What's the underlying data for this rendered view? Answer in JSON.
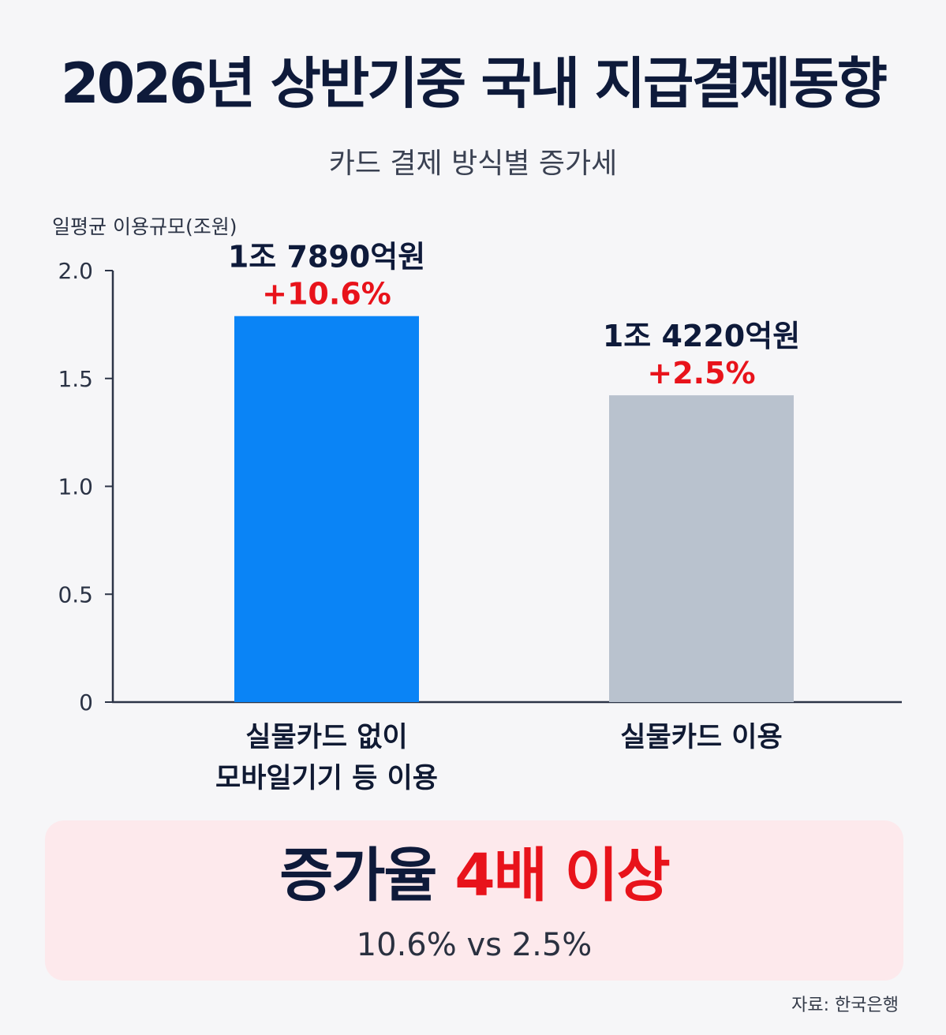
{
  "header": {
    "title": "2026년 상반기중 국내 지급결제동향",
    "subtitle": "카드 결제 방식별 증가세"
  },
  "chart_data": {
    "type": "bar",
    "ylabel": "일평균 이용규모(조원)",
    "ylim": [
      0,
      2.0
    ],
    "y_ticks": [
      "0",
      "0.5",
      "1.0",
      "1.5",
      "2.0"
    ],
    "grid": false,
    "categories": [
      [
        "실물카드 없이",
        "모바일기기 등 이용"
      ],
      [
        "실물카드 이용"
      ]
    ],
    "values": [
      1.789,
      1.422
    ],
    "value_labels": [
      "1조 7890억원",
      "1조 4220억원"
    ],
    "change_labels": [
      "+10.6%",
      "+2.5%"
    ],
    "colors": [
      "#0a84f6",
      "#b9c2ce"
    ]
  },
  "callout": {
    "headline_main": "증가율 ",
    "headline_highlight": "4배 이상",
    "detail": "10.6% vs 2.5%"
  },
  "source": "자료: 한국은행",
  "colors": {
    "axis": "#2c3447",
    "label_dark": "#0e1a3a",
    "change_red": "#e8131b",
    "callout_bg": "#fde9ec"
  }
}
